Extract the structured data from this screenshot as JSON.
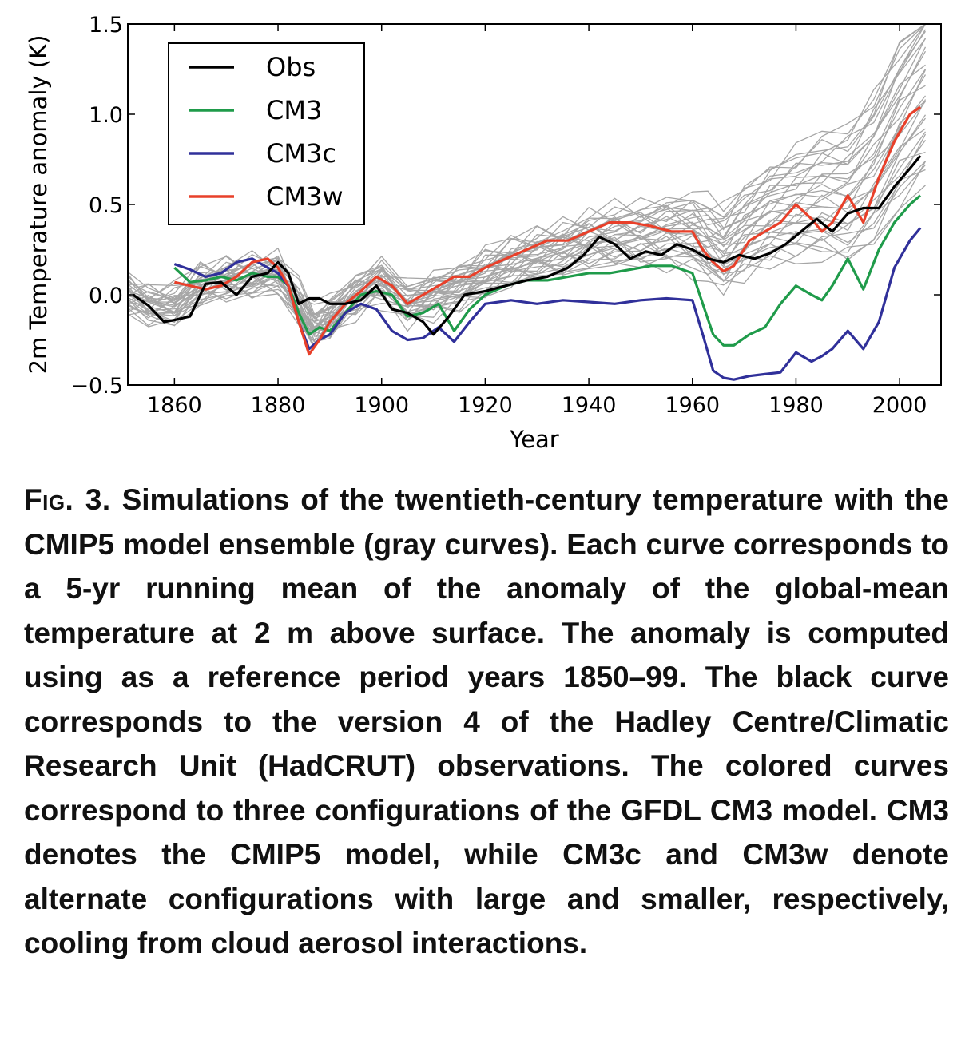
{
  "chart_data": {
    "type": "line",
    "ylabel": "2m Temperature anomaly (K)",
    "xlabel": "Year",
    "xlim": [
      1851,
      2008
    ],
    "ylim": [
      -0.5,
      1.5
    ],
    "xticks": [
      "1860",
      "1880",
      "1900",
      "1920",
      "1940",
      "1960",
      "1980",
      "2000"
    ],
    "yticks": [
      "−0.5",
      "0.0",
      "0.5",
      "1.0",
      "1.5"
    ],
    "legend_position": "top-left",
    "series": [
      {
        "name": "Obs",
        "color": "#000000",
        "x": [
          1852,
          1855,
          1858,
          1860,
          1863,
          1866,
          1869,
          1872,
          1875,
          1878,
          1880,
          1882,
          1884,
          1886,
          1888,
          1890,
          1893,
          1896,
          1899,
          1902,
          1905,
          1908,
          1910,
          1913,
          1916,
          1920,
          1924,
          1928,
          1932,
          1936,
          1939,
          1942,
          1945,
          1948,
          1951,
          1954,
          1957,
          1960,
          1963,
          1966,
          1969,
          1972,
          1975,
          1978,
          1981,
          1984,
          1987,
          1990,
          1993,
          1996,
          1999,
          2002,
          2004
        ],
        "y": [
          0.0,
          -0.06,
          -0.15,
          -0.14,
          -0.12,
          0.06,
          0.07,
          0.0,
          0.1,
          0.12,
          0.18,
          0.12,
          -0.05,
          -0.02,
          -0.02,
          -0.05,
          -0.05,
          -0.03,
          0.05,
          -0.08,
          -0.1,
          -0.15,
          -0.22,
          -0.12,
          0.0,
          0.02,
          0.05,
          0.08,
          0.1,
          0.15,
          0.22,
          0.32,
          0.28,
          0.2,
          0.24,
          0.22,
          0.28,
          0.25,
          0.2,
          0.18,
          0.22,
          0.2,
          0.23,
          0.28,
          0.35,
          0.42,
          0.35,
          0.45,
          0.48,
          0.48,
          0.6,
          0.7,
          0.77
        ]
      },
      {
        "name": "CM3",
        "color": "#1f9b4a",
        "x": [
          1860,
          1863,
          1866,
          1869,
          1872,
          1875,
          1878,
          1880,
          1882,
          1884,
          1886,
          1888,
          1890,
          1893,
          1896,
          1899,
          1902,
          1905,
          1908,
          1911,
          1914,
          1917,
          1920,
          1924,
          1928,
          1932,
          1936,
          1940,
          1944,
          1948,
          1952,
          1956,
          1960,
          1962,
          1964,
          1966,
          1968,
          1971,
          1974,
          1977,
          1980,
          1983,
          1985,
          1987,
          1990,
          1993,
          1996,
          1999,
          2002,
          2004
        ],
        "y": [
          0.15,
          0.07,
          0.08,
          0.1,
          0.08,
          0.12,
          0.1,
          0.1,
          0.05,
          -0.1,
          -0.22,
          -0.18,
          -0.2,
          -0.1,
          0.0,
          0.02,
          0.0,
          -0.12,
          -0.1,
          -0.05,
          -0.2,
          -0.08,
          0.0,
          0.05,
          0.08,
          0.08,
          0.1,
          0.12,
          0.12,
          0.14,
          0.16,
          0.16,
          0.12,
          -0.05,
          -0.22,
          -0.28,
          -0.28,
          -0.22,
          -0.18,
          -0.05,
          0.05,
          0.0,
          -0.03,
          0.05,
          0.2,
          0.03,
          0.25,
          0.4,
          0.5,
          0.55
        ]
      },
      {
        "name": "CM3c",
        "color": "#30309a",
        "x": [
          1860,
          1863,
          1866,
          1869,
          1872,
          1875,
          1878,
          1880,
          1882,
          1884,
          1886,
          1888,
          1890,
          1893,
          1896,
          1899,
          1902,
          1905,
          1908,
          1911,
          1914,
          1917,
          1920,
          1925,
          1930,
          1935,
          1940,
          1945,
          1950,
          1955,
          1960,
          1962,
          1964,
          1966,
          1968,
          1971,
          1974,
          1977,
          1980,
          1983,
          1985,
          1987,
          1990,
          1993,
          1996,
          1999,
          2002,
          2004
        ],
        "y": [
          0.17,
          0.14,
          0.1,
          0.12,
          0.18,
          0.2,
          0.15,
          0.12,
          0.05,
          -0.15,
          -0.3,
          -0.25,
          -0.22,
          -0.1,
          -0.05,
          -0.08,
          -0.2,
          -0.25,
          -0.24,
          -0.18,
          -0.26,
          -0.15,
          -0.05,
          -0.03,
          -0.05,
          -0.03,
          -0.04,
          -0.05,
          -0.03,
          -0.02,
          -0.03,
          -0.22,
          -0.42,
          -0.46,
          -0.47,
          -0.45,
          -0.44,
          -0.43,
          -0.32,
          -0.37,
          -0.34,
          -0.3,
          -0.2,
          -0.3,
          -0.15,
          0.15,
          0.3,
          0.37
        ]
      },
      {
        "name": "CM3w",
        "color": "#e8402a",
        "x": [
          1860,
          1863,
          1866,
          1869,
          1872,
          1875,
          1878,
          1880,
          1882,
          1884,
          1886,
          1888,
          1890,
          1893,
          1896,
          1899,
          1902,
          1905,
          1908,
          1911,
          1914,
          1917,
          1920,
          1924,
          1928,
          1932,
          1936,
          1940,
          1944,
          1948,
          1952,
          1956,
          1960,
          1962,
          1964,
          1966,
          1968,
          1971,
          1974,
          1977,
          1980,
          1983,
          1985,
          1987,
          1990,
          1993,
          1996,
          1999,
          2002,
          2004
        ],
        "y": [
          0.07,
          0.05,
          0.03,
          0.05,
          0.1,
          0.18,
          0.2,
          0.15,
          0.05,
          -0.15,
          -0.33,
          -0.25,
          -0.15,
          -0.05,
          0.02,
          0.1,
          0.05,
          -0.05,
          0.0,
          0.05,
          0.1,
          0.1,
          0.15,
          0.2,
          0.25,
          0.3,
          0.3,
          0.35,
          0.4,
          0.4,
          0.38,
          0.35,
          0.35,
          0.25,
          0.18,
          0.13,
          0.16,
          0.3,
          0.35,
          0.4,
          0.5,
          0.42,
          0.35,
          0.4,
          0.55,
          0.4,
          0.65,
          0.85,
          1.0,
          1.04
        ]
      }
    ],
    "ensemble": {
      "name": "CMIP5 model ensemble",
      "color": "#a6a6a6",
      "count": 32,
      "x": [
        1851,
        1855,
        1860,
        1865,
        1870,
        1875,
        1880,
        1884,
        1887,
        1890,
        1895,
        1900,
        1905,
        1910,
        1915,
        1920,
        1925,
        1930,
        1935,
        1940,
        1945,
        1950,
        1955,
        1960,
        1963,
        1966,
        1970,
        1975,
        1980,
        1985,
        1990,
        1995,
        2000,
        2005
      ],
      "y": [
        0.0,
        -0.05,
        -0.06,
        0.05,
        0.08,
        0.1,
        0.12,
        -0.05,
        -0.18,
        -0.12,
        0.0,
        0.08,
        -0.05,
        0.0,
        0.05,
        0.12,
        0.18,
        0.22,
        0.25,
        0.3,
        0.32,
        0.33,
        0.35,
        0.35,
        0.3,
        0.25,
        0.35,
        0.45,
        0.5,
        0.55,
        0.55,
        0.7,
        0.95,
        1.15
      ]
    }
  },
  "caption": {
    "label": "Fig. 3.",
    "text": "Simulations of the twentieth-century temperature with the CMIP5 model ensemble (gray curves). Each curve corresponds to a 5-yr running mean of the anomaly of the global-mean temperature at 2 m above surface. The anomaly is computed using as a reference period years 1850–99. The black curve corresponds to the version 4 of the Hadley Centre/Climatic Research Unit (HadCRUT) observations. The colored curves correspond to three configurations of the GFDL CM3 model. CM3 denotes the CMIP5 model, while CM3c and CM3w denote alternate configurations with large and smaller, respectively, cooling from cloud aerosol interactions."
  }
}
